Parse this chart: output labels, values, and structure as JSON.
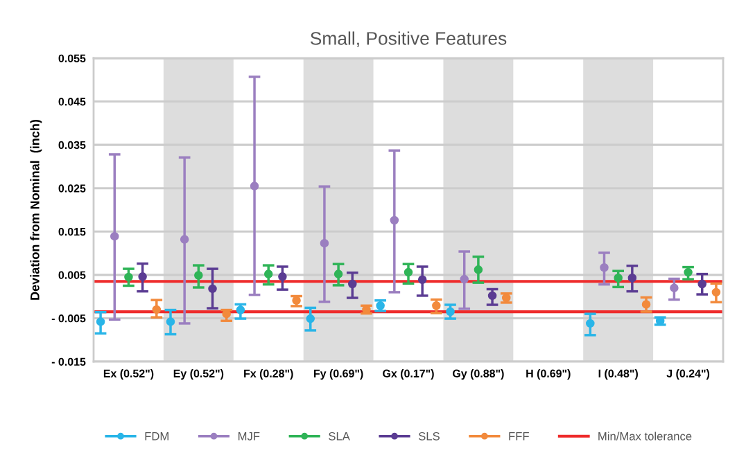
{
  "chart_data": {
    "type": "scatter",
    "title": "Small, Positive Features",
    "ylabel": "Deviation from Nominal  (inch)",
    "categories": [
      "Ex (0.52\")",
      "Ey (0.52\")",
      "Fx (0.28\")",
      "Fy (0.69\")",
      "Gx (0.17\")",
      "Gy (0.88\")",
      "H (0.69\")",
      "I (0.48\")",
      "J (0.24\")"
    ],
    "series": [
      {
        "name": "FDM",
        "color": "#29b5e8",
        "values": [
          -0.0058,
          -0.0058,
          -0.0031,
          -0.0051,
          -0.0021,
          -0.0035,
          null,
          -0.0062,
          -0.0056
        ],
        "errors": [
          [
            -0.0085,
            -0.0036
          ],
          [
            -0.0087,
            -0.0031
          ],
          [
            -0.0051,
            -0.0018
          ],
          [
            -0.0078,
            -0.0026
          ],
          [
            -0.0033,
            -0.0009
          ],
          [
            -0.0051,
            -0.0019
          ],
          null,
          [
            -0.0089,
            -0.004
          ],
          [
            -0.0065,
            -0.0048
          ]
        ]
      },
      {
        "name": "MJF",
        "color": "#9b7fc0",
        "values": [
          0.0139,
          0.0132,
          0.0255,
          0.0123,
          0.0176,
          0.004,
          null,
          0.0067,
          0.002
        ],
        "errors": [
          [
            -0.0053,
            0.0328
          ],
          [
            -0.0062,
            0.0321
          ],
          [
            0.0004,
            0.0507
          ],
          [
            -0.0012,
            0.0254
          ],
          [
            0.001,
            0.0337
          ],
          [
            -0.0028,
            0.0104
          ],
          null,
          [
            0.0028,
            0.0101
          ],
          [
            -0.0007,
            0.0041
          ]
        ]
      },
      {
        "name": "SLA",
        "color": "#2fb457",
        "values": [
          0.0045,
          0.0049,
          0.0052,
          0.0052,
          0.0056,
          0.0062,
          null,
          0.0043,
          0.0056
        ],
        "errors": [
          [
            0.0025,
            0.0064
          ],
          [
            0.0021,
            0.0072
          ],
          [
            0.0028,
            0.0072
          ],
          [
            0.0026,
            0.0075
          ],
          [
            0.003,
            0.0075
          ],
          [
            0.0032,
            0.0092
          ],
          null,
          [
            0.0022,
            0.0059
          ],
          [
            0.004,
            0.0068
          ]
        ]
      },
      {
        "name": "SLS",
        "color": "#5b3c93",
        "values": [
          0.0046,
          0.0018,
          0.0046,
          0.0029,
          0.0039,
          0.0002,
          null,
          0.0043,
          0.0029
        ],
        "errors": [
          [
            0.0012,
            0.0076
          ],
          [
            -0.0027,
            0.0064
          ],
          [
            0.0016,
            0.0069
          ],
          [
            -0.0003,
            0.0055
          ],
          [
            0.0002,
            0.0069
          ],
          [
            -0.0019,
            0.0017
          ],
          null,
          [
            0.0012,
            0.0071
          ],
          [
            0.0005,
            0.0052
          ]
        ]
      },
      {
        "name": "FFF",
        "color": "#f28a3c",
        "values": [
          -0.003,
          -0.004,
          -0.0009,
          -0.003,
          -0.0021,
          -0.0003,
          null,
          -0.0018,
          0.001
        ],
        "errors": [
          [
            -0.0048,
            -0.0008
          ],
          [
            -0.0056,
            -0.0031
          ],
          [
            -0.0022,
            0.0001
          ],
          [
            -0.0039,
            -0.0021
          ],
          [
            -0.0038,
            -0.0007
          ],
          [
            -0.0014,
            0.0007
          ],
          null,
          [
            -0.0035,
            -0.0002
          ],
          [
            -0.0013,
            0.003
          ]
        ]
      }
    ],
    "ylim": [
      -0.015,
      0.055
    ],
    "yticks": [
      {
        "value": -0.015,
        "label": "- 0.015"
      },
      {
        "value": -0.005,
        "label": "- 0.005"
      },
      0.005,
      0.015,
      0.025,
      0.035,
      0.045,
      0.055
    ],
    "ref_lines": [
      {
        "axis": "y",
        "value": 0.0035,
        "label": "Min/Max tolerance",
        "color": "#ee2b2b"
      },
      {
        "axis": "y",
        "value": -0.0035,
        "color": "#ee2b2b"
      }
    ],
    "bands": [
      {
        "axis": "x",
        "from": "Ey (0.52\")",
        "to": "Ey (0.52\")",
        "color": "#dddddd"
      },
      {
        "axis": "x",
        "from": "Fy (0.69\")",
        "to": "Fy (0.69\")",
        "color": "#dddddd"
      },
      {
        "axis": "x",
        "from": "Gy (0.88\")",
        "to": "Gy (0.88\")",
        "color": "#dddddd"
      },
      {
        "axis": "x",
        "from": "I (0.48\")",
        "to": "I (0.48\")",
        "color": "#dddddd"
      }
    ],
    "grid": "y",
    "legend": "bottom",
    "marker": "circle"
  }
}
